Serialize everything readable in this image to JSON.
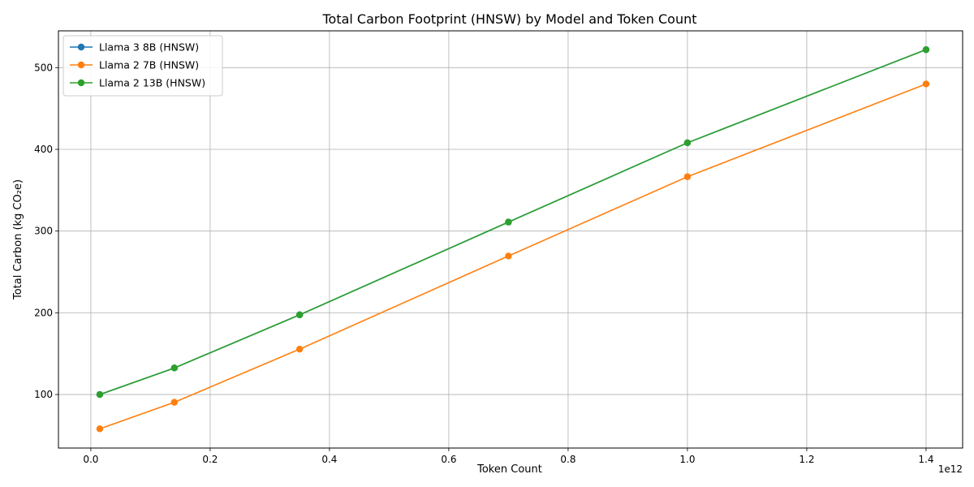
{
  "chart_data": {
    "type": "line",
    "title": "Total Carbon Footprint (HNSW) by Model and Token Count",
    "xlabel": "Token Count",
    "ylabel": "Total Carbon (kg CO₂e)",
    "x_offset_label": "1e12",
    "xlim": [
      -0.0543,
      1.4613
    ],
    "ylim": [
      34.5,
      545
    ],
    "x_ticks": [
      0.0,
      0.2,
      0.4,
      0.6,
      0.8,
      1.0,
      1.2,
      1.4
    ],
    "x_tick_labels": [
      "0.0",
      "0.2",
      "0.4",
      "0.6",
      "0.8",
      "1.0",
      "1.2",
      "1.4"
    ],
    "y_ticks": [
      100,
      200,
      300,
      400,
      500
    ],
    "y_tick_labels": [
      "100",
      "200",
      "300",
      "400",
      "500"
    ],
    "grid": true,
    "legend_position": "top-left",
    "x": [
      0.015,
      0.14,
      0.35,
      0.7,
      1.0,
      1.4
    ],
    "series": [
      {
        "name": "Llama 3 8B (HNSW)",
        "color": "#1f77b4",
        "values": [
          100,
          132.5,
          197.5,
          311,
          408,
          522
        ]
      },
      {
        "name": "Llama 2 7B (HNSW)",
        "color": "#ff7f0e",
        "values": [
          58,
          90.5,
          155.5,
          269.5,
          366.5,
          480
        ]
      },
      {
        "name": "Llama 2 13B (HNSW)",
        "color": "#2ca02c",
        "values": [
          100,
          132.5,
          197.5,
          311,
          408,
          522
        ]
      }
    ]
  }
}
